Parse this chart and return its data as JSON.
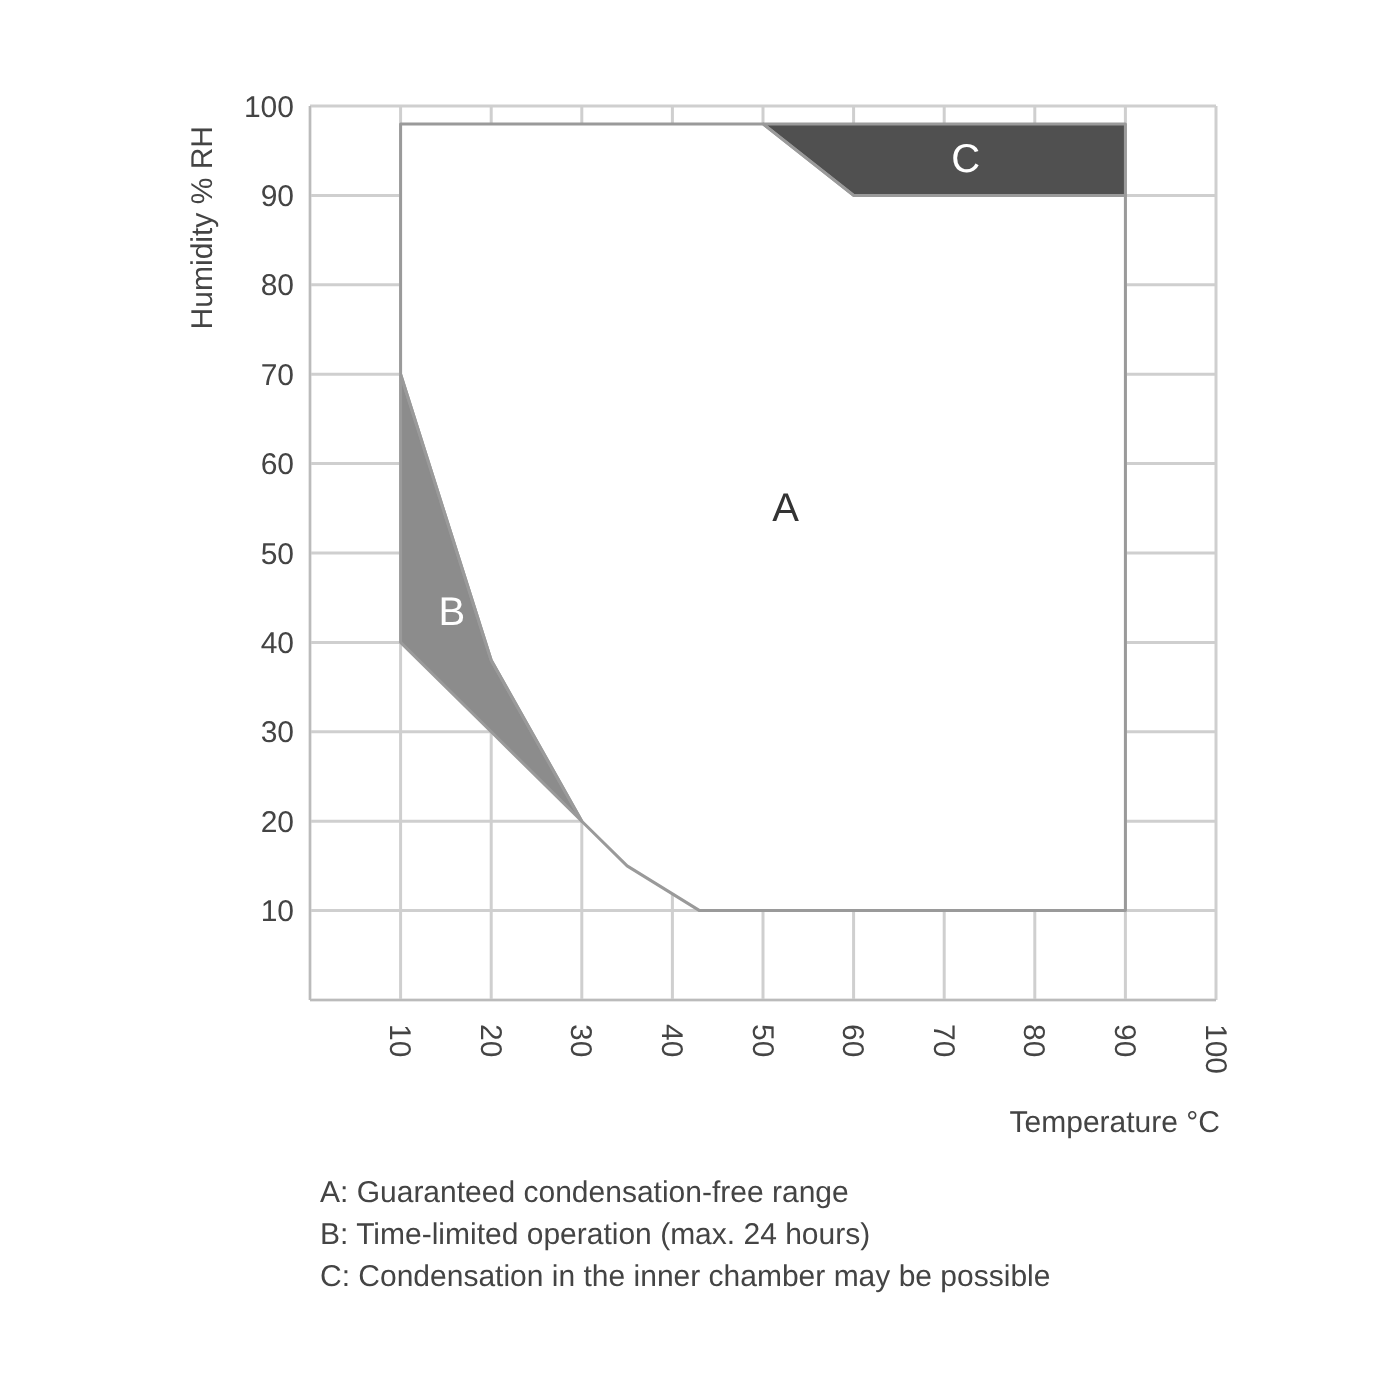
{
  "chart_data": {
    "type": "area",
    "xlabel": "Temperature °C",
    "ylabel": "Humidity % RH",
    "xlim": [
      0,
      100
    ],
    "xticks": [
      10,
      20,
      30,
      40,
      50,
      60,
      70,
      80,
      90,
      100
    ],
    "ylim": [
      0,
      100
    ],
    "yticks": [
      10,
      20,
      30,
      40,
      50,
      60,
      70,
      80,
      90,
      100
    ],
    "grid": true,
    "series": [
      {
        "color": "#ffffff",
        "x": [
          10,
          20,
          30,
          35,
          43,
          90,
          90,
          60,
          50,
          10,
          10
        ],
        "values": [
          70,
          38,
          20,
          15,
          10,
          10,
          90,
          90,
          98,
          98,
          70
        ]
      },
      {
        "color": "#8c8c8c",
        "x": [
          10,
          20,
          30,
          20,
          10,
          10
        ],
        "values": [
          70,
          38,
          20,
          30,
          40,
          70
        ]
      },
      {
        "color": "#505050",
        "x": [
          50,
          90,
          90,
          60,
          50
        ],
        "values": [
          98,
          98,
          90,
          90,
          98
        ]
      }
    ],
    "annotations": [
      "A",
      "B",
      "C",
      "A: Guaranteed condensation-free range",
      "B: Time-limited operation (max. 24 hours)",
      "C: Condensation in the inner chamber may be possible"
    ]
  }
}
